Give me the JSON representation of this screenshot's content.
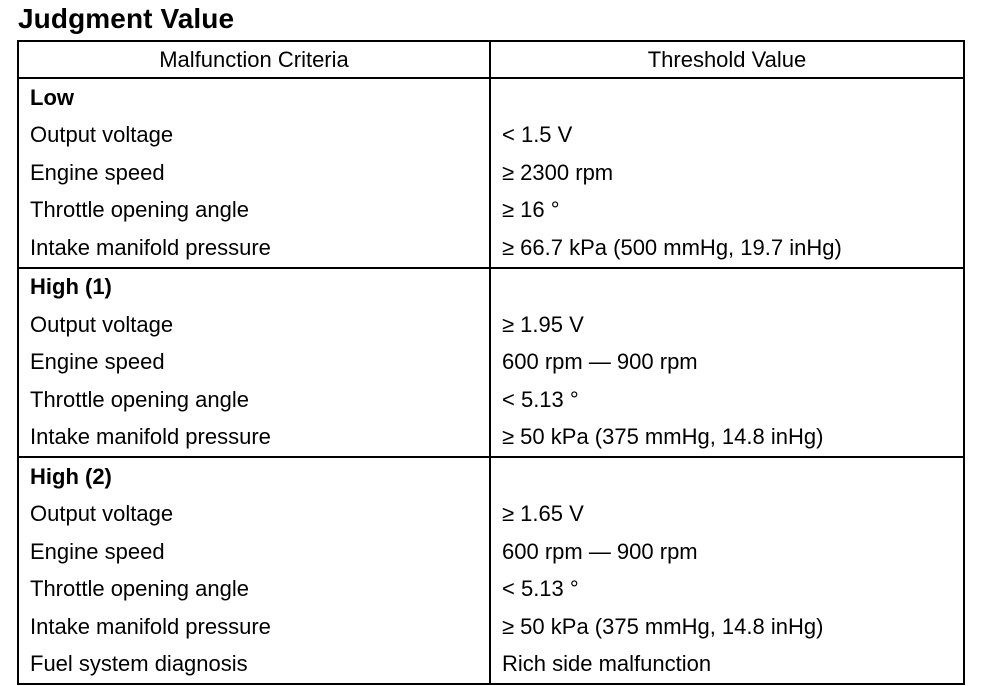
{
  "title": "Judgment Value",
  "headers": {
    "criteria": "Malfunction Criteria",
    "threshold": "Threshold Value"
  },
  "groups": [
    {
      "label": "Low",
      "rows": [
        {
          "criteria": "Output voltage",
          "value": "< 1.5 V"
        },
        {
          "criteria": "Engine speed",
          "value": "≥ 2300 rpm"
        },
        {
          "criteria": "Throttle opening angle",
          "value": "≥ 16 °"
        },
        {
          "criteria": "Intake manifold pressure",
          "value": "≥ 66.7 kPa (500 mmHg, 19.7 inHg)"
        }
      ]
    },
    {
      "label": "High (1)",
      "rows": [
        {
          "criteria": "Output voltage",
          "value": "≥ 1.95  V"
        },
        {
          "criteria": "Engine speed",
          "value": "600  rpm — 900  rpm"
        },
        {
          "criteria": "Throttle opening angle",
          "value": "< 5.13 °"
        },
        {
          "criteria": "Intake manifold pressure",
          "value": "≥ 50 kPa (375  mmHg, 14.8 inHg)"
        }
      ]
    },
    {
      "label": "High (2)",
      "rows": [
        {
          "criteria": "Output voltage",
          "value": "≥ 1.65  V"
        },
        {
          "criteria": "Engine speed",
          "value": "600  rpm — 900  rpm"
        },
        {
          "criteria": "Throttle opening angle",
          "value": "< 5.13 °"
        },
        {
          "criteria": "Intake manifold pressure",
          "value": "≥ 50 kPa (375  mmHg, 14.8 inHg)"
        },
        {
          "criteria": "Fuel system diagnosis",
          "value": "Rich side malfunction"
        }
      ]
    }
  ]
}
